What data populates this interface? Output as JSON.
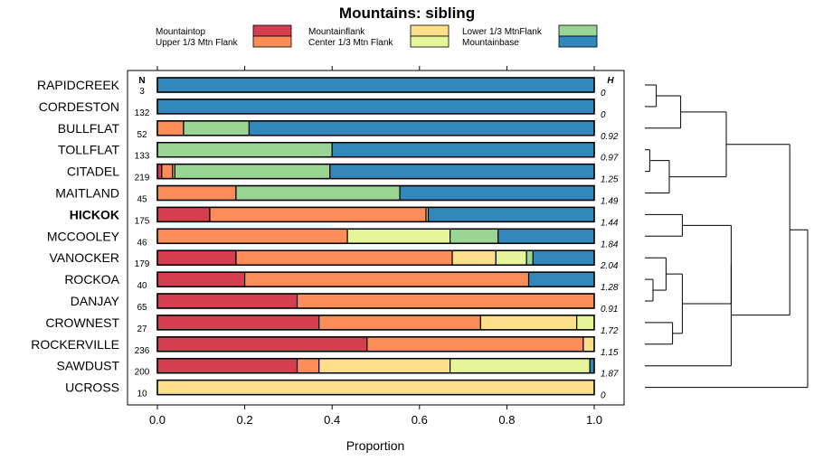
{
  "chart_data": {
    "type": "bar",
    "orientation": "horizontal",
    "stacked": true,
    "title": "Mountains: sibling",
    "xlabel": "Proportion",
    "ylabel": "",
    "xlim": [
      0,
      1
    ],
    "xticks": [
      0,
      0.2,
      0.4,
      0.6,
      0.8,
      1
    ],
    "xtick_labels": [
      "0.0",
      "0.2",
      "0.4",
      "0.6",
      "0.8",
      "1.0"
    ],
    "n_header": "N",
    "h_header": "H",
    "legend": [
      {
        "name": "Mountaintop",
        "color": "#d53e4f"
      },
      {
        "name": "Upper 1/3 Mtn Flank",
        "color": "#fc8d59"
      },
      {
        "name": "Mountainflank",
        "color": "#fee08b"
      },
      {
        "name": "Center 1/3 Mtn Flank",
        "color": "#e6f598"
      },
      {
        "name": "Lower 1/3 MtnFlank",
        "color": "#99d594"
      },
      {
        "name": "Mountainbase",
        "color": "#3288bd"
      }
    ],
    "categories": [
      "RAPIDCREEK",
      "CORDESTON",
      "BULLFLAT",
      "TOLLFLAT",
      "CITADEL",
      "MAITLAND",
      "HICKOK",
      "MCCOOLEY",
      "VANOCKER",
      "ROCKOA",
      "DANJAY",
      "CROWNEST",
      "ROCKERVILLE",
      "SAWDUST",
      "UCROSS"
    ],
    "highlight": "HICKOK",
    "n": [
      "3",
      "132",
      "52",
      "133",
      "219",
      "45",
      "175",
      "46",
      "179",
      "40",
      "65",
      "27",
      "236",
      "200",
      "10"
    ],
    "h": [
      "0",
      "0",
      "0.92",
      "0.97",
      "1.25",
      "1.49",
      "1.44",
      "1.84",
      "2.04",
      "1.28",
      "0.91",
      "1.72",
      "1.15",
      "1.87",
      "0"
    ],
    "series": [
      {
        "name": "Mountaintop",
        "values": [
          0,
          0,
          0,
          0,
          0.01,
          0,
          0.12,
          0,
          0.18,
          0.2,
          0.32,
          0.37,
          0.48,
          0.32,
          0
        ]
      },
      {
        "name": "Upper 1/3 Mtn Flank",
        "values": [
          0,
          0,
          0.06,
          0,
          0.025,
          0.18,
          0.495,
          0.435,
          0.495,
          0.65,
          0.68,
          0.37,
          0.495,
          0.05,
          0
        ]
      },
      {
        "name": "Mountainflank",
        "values": [
          0,
          0,
          0,
          0,
          0.005,
          0,
          0.005,
          0,
          0.1,
          0,
          0,
          0.22,
          0.025,
          0.3,
          1.0
        ]
      },
      {
        "name": "Center 1/3 Mtn Flank",
        "values": [
          0,
          0,
          0,
          0,
          0,
          0,
          0,
          0.235,
          0.07,
          0,
          0,
          0.04,
          0,
          0.32,
          0
        ]
      },
      {
        "name": "Lower 1/3 MtnFlank",
        "values": [
          0,
          0,
          0.15,
          0.4,
          0.355,
          0.375,
          0,
          0.11,
          0.015,
          0,
          0,
          0,
          0,
          0,
          0
        ]
      },
      {
        "name": "Mountainbase",
        "values": [
          1.0,
          1.0,
          0.79,
          0.6,
          0.605,
          0.445,
          0.38,
          0.22,
          0.14,
          0.15,
          0,
          0,
          0,
          0.01,
          0
        ]
      }
    ],
    "dendrogram": {
      "leaf_order": [
        "RAPIDCREEK",
        "CORDESTON",
        "BULLFLAT",
        "TOLLFLAT",
        "CITADEL",
        "MAITLAND",
        "HICKOK",
        "MCCOOLEY",
        "VANOCKER",
        "ROCKOA",
        "DANJAY",
        "CROWNEST",
        "ROCKERVILLE",
        "SAWDUST",
        "UCROSS"
      ],
      "merges": [
        {
          "left": [
            0
          ],
          "right": [
            1
          ],
          "height": 0.07
        },
        {
          "left": [
            3
          ],
          "right": [
            4
          ],
          "height": 0.03
        },
        {
          "left": [
            9
          ],
          "right": [
            10
          ],
          "height": 0.05
        },
        {
          "left": [
            11
          ],
          "right": [
            12
          ],
          "height": 0.17
        },
        {
          "left": [
            0,
            1
          ],
          "right": [
            2
          ],
          "height": 0.22
        },
        {
          "left": [
            3,
            4
          ],
          "right": [
            5
          ],
          "height": 0.15
        },
        {
          "left": [
            8
          ],
          "right": [
            9,
            10
          ],
          "height": 0.13
        },
        {
          "left": [
            6
          ],
          "right": [
            7
          ],
          "height": 0.23
        },
        {
          "left": [
            0,
            1,
            2
          ],
          "right": [
            3,
            4,
            5
          ],
          "height": 0.5
        },
        {
          "left": [
            8,
            9,
            10
          ],
          "right": [
            11,
            12
          ],
          "height": 0.23
        },
        {
          "left": [
            6,
            7
          ],
          "right": [
            8,
            9,
            10,
            11,
            12
          ],
          "height": 0.53
        },
        {
          "left": [
            6,
            7,
            8,
            9,
            10,
            11,
            12
          ],
          "right": [
            13
          ],
          "height": 0.53
        },
        {
          "left": [
            0,
            1,
            2,
            3,
            4,
            5
          ],
          "right": [
            6,
            7,
            8,
            9,
            10,
            11,
            12,
            13
          ],
          "height": 0.89
        },
        {
          "left": [
            0,
            1,
            2,
            3,
            4,
            5,
            6,
            7,
            8,
            9,
            10,
            11,
            12,
            13
          ],
          "right": [
            14
          ],
          "height": 1.0
        }
      ]
    }
  }
}
